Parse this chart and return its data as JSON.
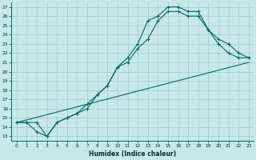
{
  "xlabel": "Humidex (Indice chaleur)",
  "bg_color": "#c8e8e8",
  "grid_color": "#a0c8c8",
  "line_color": "#006868",
  "ylim": [
    12.5,
    27.5
  ],
  "xlim": [
    -0.5,
    23.5
  ],
  "yticks": [
    13,
    14,
    15,
    16,
    17,
    18,
    19,
    20,
    21,
    22,
    23,
    24,
    25,
    26,
    27
  ],
  "xticks": [
    0,
    1,
    2,
    3,
    4,
    5,
    6,
    7,
    8,
    9,
    10,
    11,
    12,
    13,
    14,
    15,
    16,
    17,
    18,
    19,
    20,
    21,
    22,
    23
  ],
  "curve1_x": [
    0,
    1,
    2,
    3,
    4,
    5,
    6,
    7,
    8,
    9,
    10,
    11,
    12,
    13,
    14,
    15,
    16,
    17,
    18,
    19,
    20,
    21,
    22,
    23
  ],
  "curve1_y": [
    14.5,
    14.5,
    14.5,
    13.0,
    14.5,
    15.0,
    15.5,
    16.5,
    17.5,
    18.5,
    20.5,
    21.5,
    23.0,
    25.5,
    26.0,
    27.0,
    27.0,
    26.5,
    26.5,
    24.5,
    23.0,
    22.0,
    21.5,
    21.5
  ],
  "curve2_x": [
    0,
    1,
    2,
    3,
    4,
    5,
    6,
    7,
    8,
    9,
    10,
    11,
    12,
    13,
    14,
    15,
    16,
    17,
    18,
    19,
    20,
    21,
    22,
    23
  ],
  "curve2_y": [
    14.5,
    14.5,
    13.5,
    13.0,
    14.5,
    15.0,
    15.5,
    16.0,
    17.5,
    18.5,
    20.5,
    21.0,
    22.5,
    23.5,
    25.5,
    26.5,
    26.5,
    26.0,
    26.0,
    24.5,
    23.5,
    23.0,
    22.0,
    21.5
  ],
  "line3_x": [
    0,
    23
  ],
  "line3_y": [
    14.5,
    21.0
  ]
}
